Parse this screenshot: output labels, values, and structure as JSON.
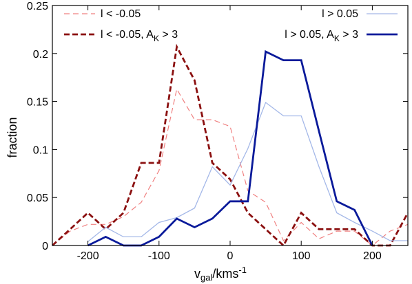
{
  "chart_data": {
    "type": "line",
    "xlabel": {
      "main": "v",
      "sub": "gal",
      "rest": "/kms",
      "sup": "-1"
    },
    "ylabel": "fraction",
    "xlim": [
      -250,
      250
    ],
    "ylim": [
      0,
      0.25
    ],
    "xticks": [
      -200,
      -100,
      0,
      100,
      200
    ],
    "xtick_labels": [
      "-200",
      "-100",
      "0",
      "100",
      "200"
    ],
    "yticks": [
      0,
      0.05,
      0.1,
      0.15,
      0.2,
      0.25
    ],
    "ytick_labels": [
      "0",
      "0.05",
      "0.1",
      "0.15",
      "0.2",
      "0.25"
    ],
    "grid": false,
    "series": [
      {
        "name": "l < -0.05",
        "legend": {
          "parts": [
            [
              "l < -0.05",
              "n"
            ]
          ]
        },
        "color": "#f08080",
        "style": "dashed-thin",
        "x": [
          -250,
          -225,
          -200,
          -175,
          -150,
          -125,
          -100,
          -75,
          -50,
          -25,
          0,
          25,
          50,
          75,
          100,
          125,
          150,
          175,
          200,
          225,
          250
        ],
        "y": [
          0.0,
          0.015,
          0.022,
          0.022,
          0.03,
          0.045,
          0.078,
          0.163,
          0.131,
          0.131,
          0.124,
          0.057,
          0.045,
          0.005,
          0.024,
          0.007,
          0.015,
          0.015,
          0.0,
          0.015,
          0.022
        ]
      },
      {
        "name": "l < -0.05, A_K > 3",
        "legend": {
          "parts": [
            [
              "l < -0.05, A",
              "n"
            ],
            [
              "K",
              "sub"
            ],
            [
              " > 3",
              "n"
            ]
          ]
        },
        "color": "#8b1010",
        "style": "dashed-thick",
        "x": [
          -250,
          -225,
          -200,
          -175,
          -150,
          -125,
          -100,
          -75,
          -50,
          -25,
          0,
          25,
          50,
          75,
          100,
          125,
          150,
          175,
          200,
          225,
          250
        ],
        "y": [
          0.0,
          0.017,
          0.034,
          0.017,
          0.034,
          0.086,
          0.086,
          0.207,
          0.172,
          0.086,
          0.069,
          0.034,
          0.017,
          0.0,
          0.034,
          0.017,
          0.017,
          0.017,
          0.0,
          0.0,
          0.034
        ]
      },
      {
        "name": "l > 0.05",
        "legend": {
          "parts": [
            [
              "l > 0.05",
              "n"
            ]
          ]
        },
        "color": "#a4b8e8",
        "style": "solid-thin",
        "x": [
          -200,
          -175,
          -150,
          -125,
          -100,
          -75,
          -50,
          -25,
          0,
          25,
          50,
          75,
          100,
          125,
          150,
          175,
          200,
          225,
          250
        ],
        "y": [
          0.004,
          0.019,
          0.009,
          0.009,
          0.024,
          0.029,
          0.039,
          0.082,
          0.063,
          0.101,
          0.149,
          0.135,
          0.135,
          0.082,
          0.034,
          0.024,
          0.015,
          0.005,
          0.005
        ]
      },
      {
        "name": "l > 0.05, A_K > 3",
        "legend": {
          "parts": [
            [
              "l > 0.05, A",
              "n"
            ],
            [
              "K",
              "sub"
            ],
            [
              " > 3",
              "n"
            ]
          ]
        },
        "color": "#0a1a9a",
        "style": "solid-thick",
        "x": [
          -200,
          -175,
          -150,
          -125,
          -100,
          -75,
          -50,
          -25,
          0,
          25,
          50,
          75,
          100,
          125,
          150,
          175,
          200
        ],
        "y": [
          0.0,
          0.009,
          0.0,
          0.0,
          0.009,
          0.028,
          0.019,
          0.028,
          0.046,
          0.046,
          0.202,
          0.193,
          0.193,
          0.119,
          0.046,
          0.037,
          0.0
        ]
      }
    ]
  }
}
